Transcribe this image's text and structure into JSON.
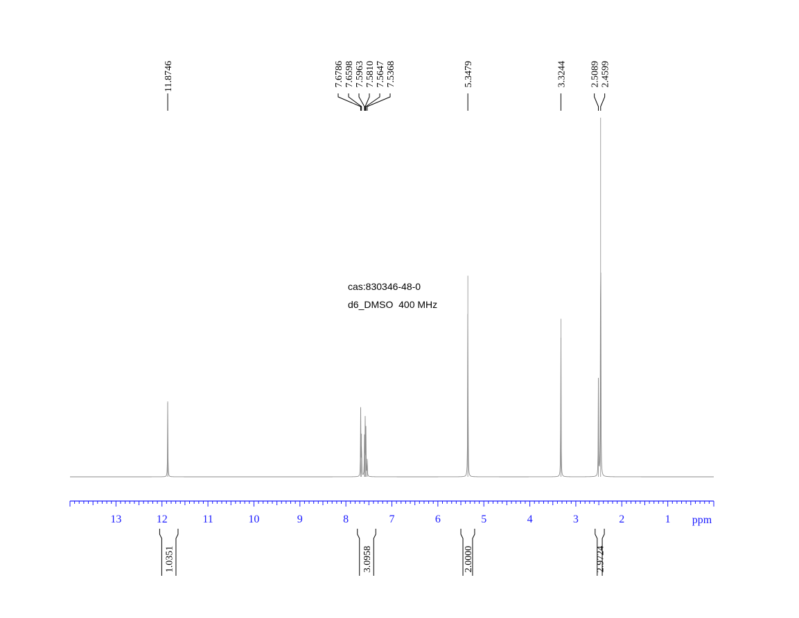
{
  "chart_data": {
    "type": "line",
    "title": "",
    "xlabel": "ppm",
    "ylabel": "",
    "xlim": [
      14.0,
      0.0
    ],
    "x_reversed": true,
    "grid": false,
    "legend": "none",
    "x_ticks": [
      13,
      12,
      11,
      10,
      9,
      8,
      7,
      6,
      5,
      4,
      3,
      2,
      1
    ],
    "annotations": [
      {
        "text": "cas:830346-48-0"
      },
      {
        "text": "d6_DMSO  400 MHz"
      }
    ],
    "peaks": [
      {
        "x": 11.8746,
        "height": 0.21
      },
      {
        "x": 7.6786,
        "height": 0.19
      },
      {
        "x": 7.6598,
        "height": 0.12
      },
      {
        "x": 7.5963,
        "height": 0.11
      },
      {
        "x": 7.581,
        "height": 0.16
      },
      {
        "x": 7.5647,
        "height": 0.13
      },
      {
        "x": 7.5368,
        "height": 0.05
      },
      {
        "x": 5.3479,
        "height": 0.56
      },
      {
        "x": 3.3244,
        "height": 0.44
      },
      {
        "x": 2.5089,
        "height": 0.27
      },
      {
        "x": 2.4599,
        "height": 1.0
      }
    ],
    "peak_label_groups": [
      {
        "labels": [
          "11.8746"
        ]
      },
      {
        "labels": [
          "7.6786",
          "7.6598",
          "7.5963",
          "7.5810",
          "7.5647",
          "7.5368"
        ]
      },
      {
        "labels": [
          "5.3479"
        ]
      },
      {
        "labels": [
          "3.3244"
        ]
      },
      {
        "labels": [
          "2.5089",
          "2.4599"
        ]
      }
    ],
    "integrals": [
      {
        "from": 12.05,
        "to": 11.65,
        "value": "1.0351"
      },
      {
        "from": 7.75,
        "to": 7.35,
        "value": "3.0958"
      },
      {
        "from": 5.5,
        "to": 5.2,
        "value": "2.0000"
      },
      {
        "from": 2.58,
        "to": 2.38,
        "value": "2.9724"
      }
    ],
    "colors": {
      "axis": "#1a1aff",
      "trace": "#8a8a8a",
      "peak_labels": "#000000",
      "integral_labels": "#000000"
    }
  }
}
